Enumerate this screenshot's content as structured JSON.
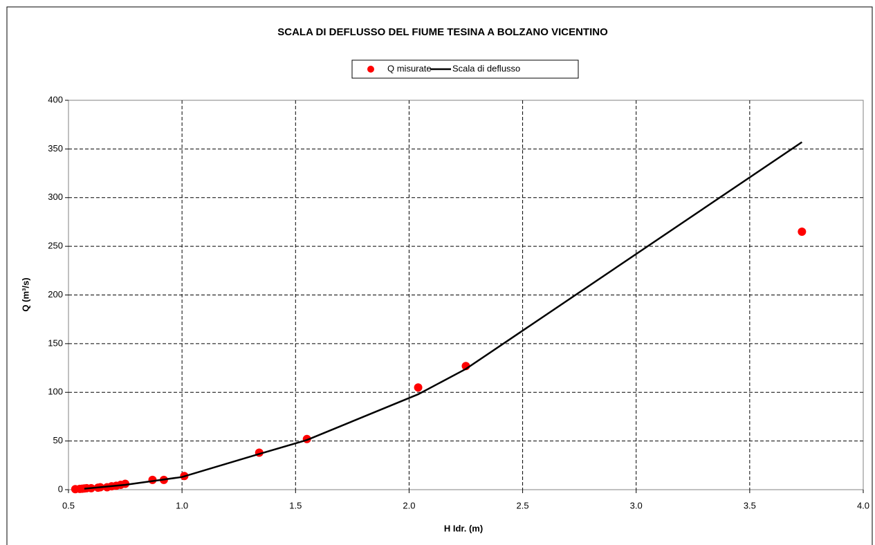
{
  "chart_data": {
    "type": "scatter",
    "title": "SCALA DI DEFLUSSO DEL FIUME TESINA A BOLZANO VICENTINO",
    "xlabel": "H Idr. (m)",
    "ylabel": "Q (m³/s)",
    "xlim": [
      0.5,
      4.0
    ],
    "ylim": [
      0,
      400
    ],
    "xticks": [
      {
        "value": 0.5,
        "label": "0.5"
      },
      {
        "value": 1,
        "label": "1.0"
      },
      {
        "value": 1.5,
        "label": "1.5"
      },
      {
        "value": 2,
        "label": "2.0"
      },
      {
        "value": 2.5,
        "label": "2.5"
      },
      {
        "value": 3,
        "label": "3.0"
      },
      {
        "value": 3.5,
        "label": "3.5"
      },
      {
        "value": 4,
        "label": "4.0"
      }
    ],
    "yticks": [
      0,
      50,
      100,
      150,
      200,
      250,
      300,
      350,
      400
    ],
    "grid": true,
    "legend": "top",
    "series": [
      {
        "name": "Q misurate",
        "color": "#ff0000",
        "style": "markers",
        "x": [
          0.53,
          0.55,
          0.56,
          0.57,
          0.58,
          0.6,
          0.63,
          0.64,
          0.67,
          0.69,
          0.71,
          0.73,
          0.75,
          0.87,
          0.92,
          1.01,
          1.34,
          1.55,
          2.04,
          2.25,
          3.73
        ],
        "values": [
          0.5,
          0.8,
          1,
          1.2,
          1.5,
          1.5,
          2,
          2.5,
          2.5,
          3.5,
          4,
          5,
          6,
          10,
          10,
          14,
          38,
          52,
          105,
          127,
          265
        ]
      },
      {
        "name": "Scala di deflusso",
        "color": "#000000",
        "style": "line",
        "x": [
          0.57,
          0.75,
          1.0,
          1.33,
          1.55,
          2.04,
          2.25,
          3.73
        ],
        "values": [
          1,
          5,
          13,
          36,
          51,
          98,
          124,
          357
        ]
      }
    ]
  }
}
